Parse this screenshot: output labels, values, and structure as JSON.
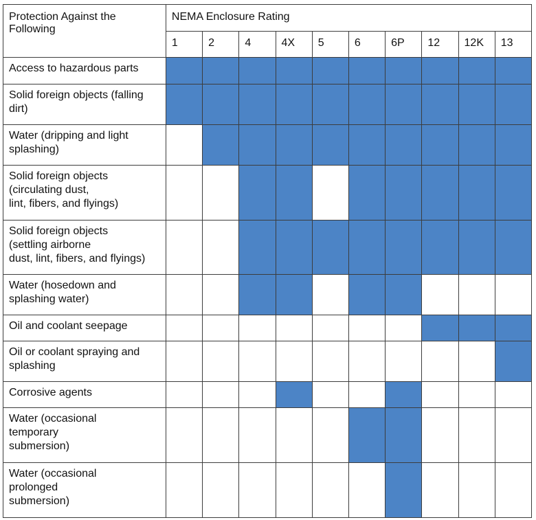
{
  "header": {
    "corner_label": "Protection Against the Following",
    "group_label": "NEMA Enclosure Rating"
  },
  "ratings": [
    "1",
    "2",
    "4",
    "4X",
    "5",
    "6",
    "6P",
    "12",
    "12K",
    "13"
  ],
  "rows": [
    {
      "label": "Access to hazardous parts",
      "marks": [
        1,
        1,
        1,
        1,
        1,
        1,
        1,
        1,
        1,
        1
      ]
    },
    {
      "label": "Solid foreign objects (falling dirt)",
      "marks": [
        1,
        1,
        1,
        1,
        1,
        1,
        1,
        1,
        1,
        1
      ]
    },
    {
      "label": "Water (dripping and light splashing)",
      "marks": [
        0,
        1,
        1,
        1,
        1,
        1,
        1,
        1,
        1,
        1
      ]
    },
    {
      "label": "Solid foreign objects\n(circulating dust,\nlint, fibers, and flyings)",
      "marks": [
        0,
        0,
        1,
        1,
        0,
        1,
        1,
        1,
        1,
        1
      ]
    },
    {
      "label": "Solid foreign objects\n(settling airborne\ndust, lint, fibers, and flyings)",
      "marks": [
        0,
        0,
        1,
        1,
        1,
        1,
        1,
        1,
        1,
        1
      ]
    },
    {
      "label": "Water (hosedown and splashing water)",
      "marks": [
        0,
        0,
        1,
        1,
        0,
        1,
        1,
        0,
        0,
        0
      ]
    },
    {
      "label": "Oil and coolant seepage",
      "marks": [
        0,
        0,
        0,
        0,
        0,
        0,
        0,
        1,
        1,
        1
      ]
    },
    {
      "label": "Oil or coolant spraying and splashing",
      "marks": [
        0,
        0,
        0,
        0,
        0,
        0,
        0,
        0,
        0,
        1
      ]
    },
    {
      "label": "Corrosive agents",
      "marks": [
        0,
        0,
        0,
        1,
        0,
        0,
        1,
        0,
        0,
        0
      ]
    },
    {
      "label": "Water (occasional\ntemporary\nsubmersion)",
      "marks": [
        0,
        0,
        0,
        0,
        0,
        1,
        1,
        0,
        0,
        0
      ]
    },
    {
      "label": "Water (occasional\nprolonged\nsubmersion)",
      "marks": [
        0,
        0,
        0,
        0,
        0,
        0,
        1,
        0,
        0,
        0
      ]
    }
  ],
  "colors": {
    "protected": "#4c84c6",
    "not_protected": "#ffffff",
    "grid": "#3c3c3c"
  }
}
